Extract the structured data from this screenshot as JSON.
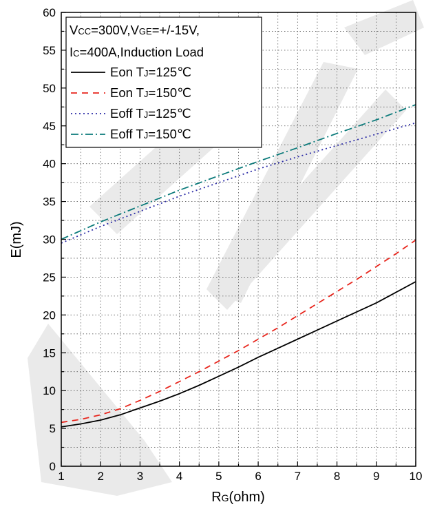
{
  "chart_data": {
    "type": "line",
    "title": "",
    "xlabel": {
      "main": "R",
      "sub": "G",
      "tail": "(ohm)"
    },
    "ylabel": "E(mJ)",
    "xlim": [
      1,
      10
    ],
    "ylim": [
      0,
      60
    ],
    "xticks": [
      1,
      2,
      3,
      4,
      5,
      6,
      7,
      8,
      9,
      10
    ],
    "yticks": [
      0,
      5,
      10,
      15,
      20,
      25,
      30,
      35,
      40,
      45,
      50,
      55,
      60
    ],
    "grid": true,
    "grid_style": "dotted",
    "legend_position": "top-left",
    "conditions": {
      "line1": {
        "p1": "V",
        "s1": "CC",
        "p2": "=300V,V",
        "s2": "GE",
        "p3": "=+/-15V,"
      },
      "line2": {
        "p1": "I",
        "s1": "C",
        "p2": "=400A,Induction Load"
      }
    },
    "series": [
      {
        "name": "Eon TJ=125℃",
        "legend": {
          "pre": "Eon T",
          "sub": "J",
          "post": "=125℃"
        },
        "color": "#000000",
        "style": "solid",
        "x": [
          1,
          1.5,
          2,
          2.5,
          3,
          3.5,
          4,
          4.5,
          5,
          5.5,
          6,
          6.5,
          7,
          7.5,
          8,
          8.5,
          9,
          9.5,
          10
        ],
        "y": [
          5.2,
          5.6,
          6.1,
          6.8,
          7.7,
          8.6,
          9.6,
          10.7,
          11.9,
          13.1,
          14.4,
          15.6,
          16.8,
          18.0,
          19.2,
          20.4,
          21.6,
          23.0,
          24.4
        ]
      },
      {
        "name": "Eon TJ=150℃",
        "legend": {
          "pre": "Eon T",
          "sub": "J",
          "post": "=150℃"
        },
        "color": "#e8251c",
        "style": "dashed",
        "x": [
          1,
          1.5,
          2,
          2.5,
          3,
          3.5,
          4,
          4.5,
          5,
          5.5,
          6,
          6.5,
          7,
          7.5,
          8,
          8.5,
          9,
          9.5,
          10
        ],
        "y": [
          5.8,
          6.2,
          6.8,
          7.6,
          8.7,
          9.9,
          11.2,
          12.5,
          13.9,
          15.3,
          16.8,
          18.3,
          19.9,
          21.5,
          23.1,
          24.7,
          26.4,
          28.1,
          29.9
        ]
      },
      {
        "name": "Eoff TJ=125℃",
        "legend": {
          "pre": "Eoff T",
          "sub": "J",
          "post": "=125℃"
        },
        "color": "#2b2ba6",
        "style": "dotted",
        "x": [
          1,
          2,
          3,
          4,
          5,
          6,
          7,
          8,
          9,
          10
        ],
        "y": [
          29.5,
          31.7,
          33.7,
          35.7,
          37.5,
          39.3,
          40.9,
          42.4,
          43.9,
          45.4
        ]
      },
      {
        "name": "Eoff TJ=150℃",
        "legend": {
          "pre": "Eoff T",
          "sub": "J",
          "post": "=150℃"
        },
        "color": "#0a7a7a",
        "style": "dashdot",
        "x": [
          1,
          2,
          3,
          4,
          5,
          6,
          7,
          8,
          9,
          10
        ],
        "y": [
          30.0,
          32.3,
          34.4,
          36.5,
          38.4,
          40.3,
          42.1,
          44.0,
          45.8,
          47.8
        ]
      }
    ]
  }
}
